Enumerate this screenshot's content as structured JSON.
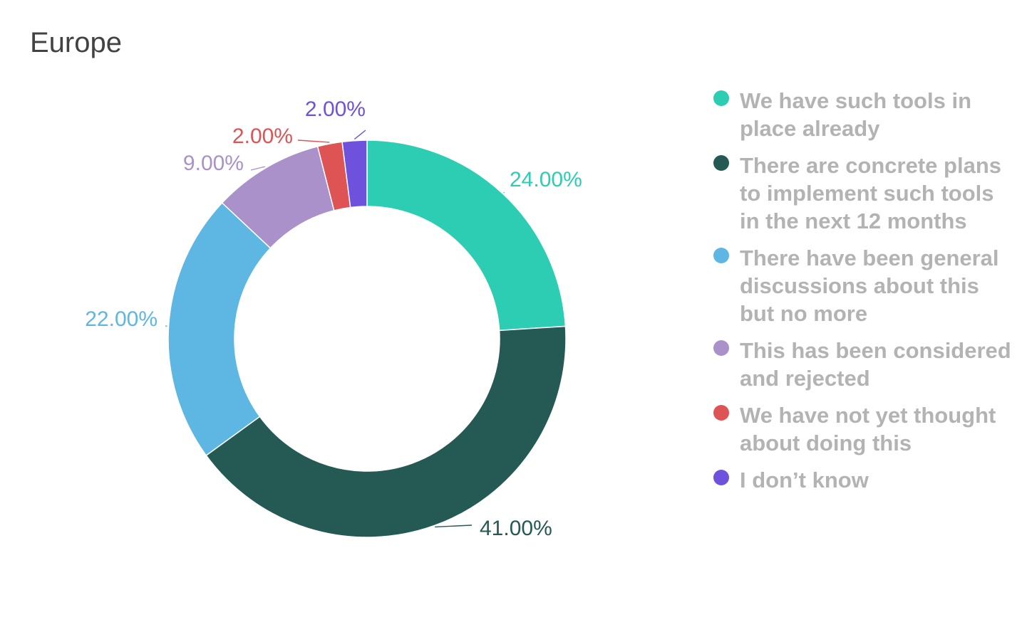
{
  "chart_data": {
    "type": "pie",
    "title": "Europe",
    "categories": [
      "We have such tools in place already",
      "There are concrete plans to implement such tools in the next 12 months",
      "There have been general discussions about this but no more",
      "This has been considered and rejected",
      "We have not yet thought about doing this",
      "I don’t know"
    ],
    "values": [
      24,
      41,
      22,
      9,
      2,
      2
    ],
    "value_labels": [
      "24.00%",
      "41.00%",
      "22.00%",
      "9.00%",
      "2.00%",
      "2.00%"
    ],
    "colors": [
      "#2ccdb2",
      "#245a53",
      "#5eb7e3",
      "#aa91c9",
      "#de5353",
      "#6e52de"
    ],
    "donut": true,
    "legend_position": "right"
  }
}
